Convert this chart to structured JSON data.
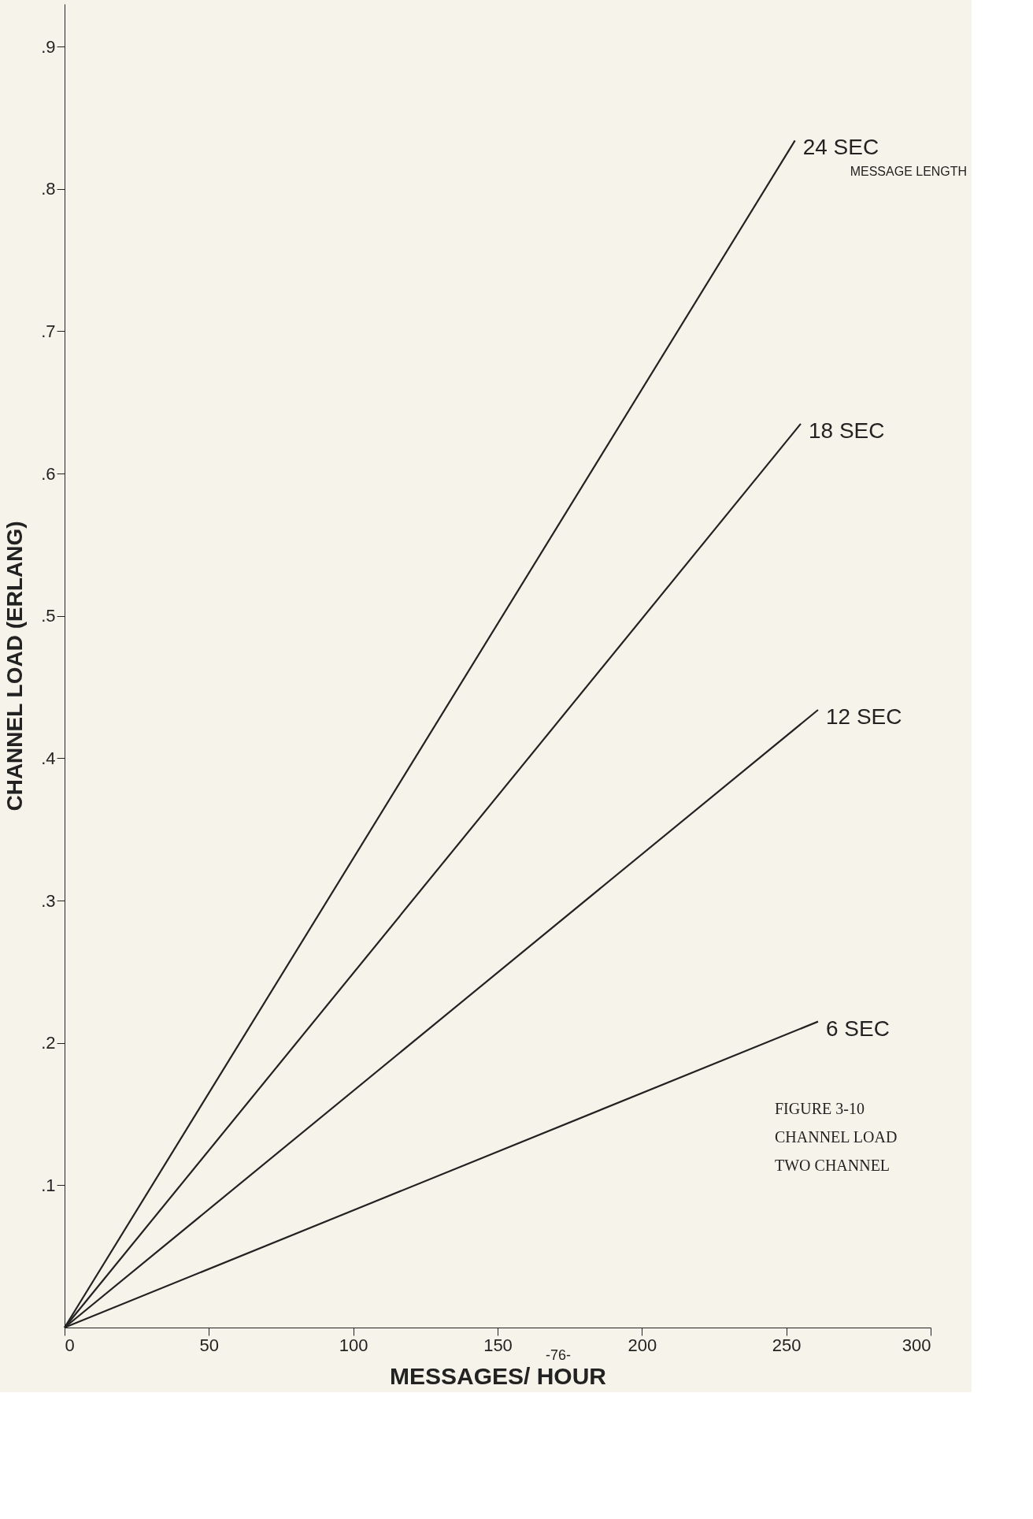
{
  "chart_data": {
    "type": "line",
    "xlabel": "MESSAGES/ HOUR",
    "ylabel": "CHANNEL LOAD (ERLANG)",
    "xlim": [
      0,
      300
    ],
    "ylim": [
      0,
      0.93
    ],
    "xticks": [
      0,
      50,
      100,
      150,
      200,
      250,
      300
    ],
    "yticks": [
      {
        "value": 0.1,
        "label": ".1"
      },
      {
        "value": 0.2,
        "label": ".2"
      },
      {
        "value": 0.3,
        "label": ".3"
      },
      {
        "value": 0.4,
        "label": ".4"
      },
      {
        "value": 0.5,
        "label": ".5"
      },
      {
        "value": 0.6,
        "label": ".6"
      },
      {
        "value": 0.7,
        "label": ".7"
      },
      {
        "value": 0.8,
        "label": ".8"
      },
      {
        "value": 0.9,
        "label": ".9"
      }
    ],
    "grid": false,
    "marker": "none",
    "line_style": "solid",
    "series": [
      {
        "name": "24 SEC",
        "color": "#222222",
        "x": [
          0,
          253
        ],
        "values": [
          0,
          0.834
        ]
      },
      {
        "name": "18 SEC",
        "color": "#222222",
        "x": [
          0,
          255
        ],
        "values": [
          0,
          0.635
        ]
      },
      {
        "name": "12 SEC",
        "color": "#222222",
        "x": [
          0,
          261
        ],
        "values": [
          0,
          0.434
        ]
      },
      {
        "name": "6 SEC",
        "color": "#222222",
        "x": [
          0,
          261
        ],
        "values": [
          0,
          0.215
        ]
      }
    ],
    "annotations": [
      "MESSAGE LENGTH",
      "FIGURE 3-10",
      "CHANNEL LOAD",
      "TWO CHANNEL",
      "-76-"
    ]
  }
}
